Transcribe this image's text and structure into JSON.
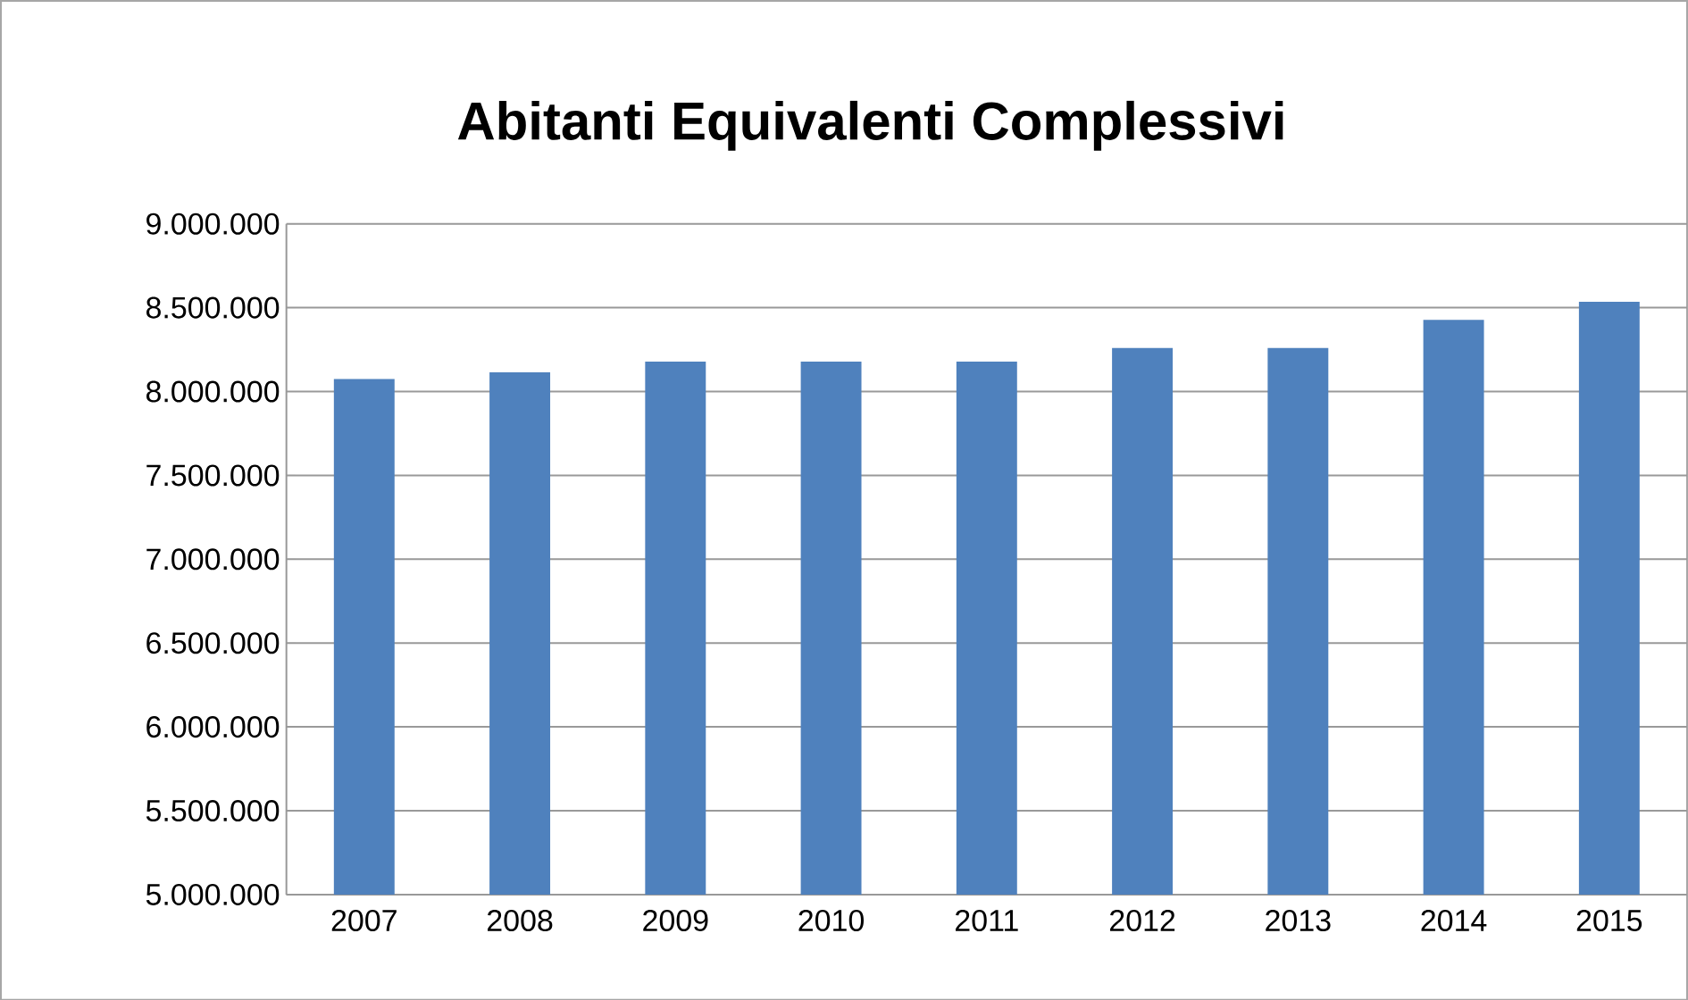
{
  "chart_data": {
    "type": "bar",
    "title": "Abitanti Equivalenti Complessivi",
    "categories": [
      "2007",
      "2008",
      "2009",
      "2010",
      "2011",
      "2012",
      "2013",
      "2014",
      "2015"
    ],
    "values": [
      8075000,
      8115000,
      8178000,
      8178000,
      8178000,
      8260000,
      8260000,
      8428000,
      8535000
    ],
    "color": "#4f81bd",
    "ylim": [
      5000000,
      9000000
    ],
    "yticks": [
      {
        "value": 5000000,
        "label": "5.000.000"
      },
      {
        "value": 5500000,
        "label": "5.500.000"
      },
      {
        "value": 6000000,
        "label": "6.000.000"
      },
      {
        "value": 6500000,
        "label": "6.500.000"
      },
      {
        "value": 7000000,
        "label": "7.000.000"
      },
      {
        "value": 7500000,
        "label": "7.500.000"
      },
      {
        "value": 8000000,
        "label": "8.000.000"
      },
      {
        "value": 8500000,
        "label": "8.500.000"
      },
      {
        "value": 9000000,
        "label": "9.000.000"
      }
    ],
    "grid": "y"
  }
}
